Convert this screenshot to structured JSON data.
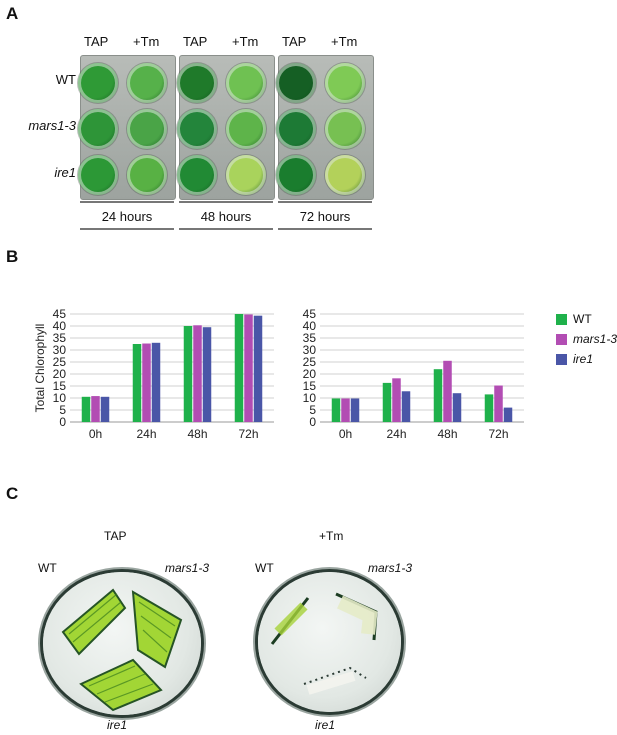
{
  "panels": {
    "a_label": "A",
    "b_label": "B",
    "c_label": "C"
  },
  "panel_a": {
    "column_headers": [
      "TAP",
      "+Tm",
      "TAP",
      "+Tm",
      "TAP",
      "+Tm"
    ],
    "row_labels": [
      "WT",
      "mars1-3",
      "ire1"
    ],
    "time_labels": [
      "24 hours",
      "48 hours",
      "72 hours"
    ],
    "well_colors": [
      [
        [
          "#2f9a36",
          "#56b14a"
        ],
        [
          "#1f7a2a",
          "#6fc152"
        ],
        [
          "#155f24",
          "#7fca55"
        ]
      ],
      [
        [
          "#2e9538",
          "#4aa447"
        ],
        [
          "#23853b",
          "#5eb44a"
        ],
        [
          "#1d7a35",
          "#77c052"
        ]
      ],
      [
        [
          "#2c9836",
          "#58b144"
        ],
        [
          "#218a34",
          "#a9d35c"
        ],
        [
          "#1a7d2e",
          "#b3d15a"
        ]
      ]
    ]
  },
  "panel_b": {
    "y_axis_label": "Total Chlorophyll",
    "legend": [
      {
        "name": "WT",
        "color": "#1fb14b",
        "italic": false
      },
      {
        "name": "mars1-3",
        "color": "#b24db3",
        "italic": true
      },
      {
        "name": "ire1",
        "color": "#4a56a7",
        "italic": true
      }
    ]
  },
  "chart_data": [
    {
      "type": "bar",
      "categories": [
        "0h",
        "24h",
        "48h",
        "72h"
      ],
      "series": [
        {
          "name": "WT",
          "values": [
            10.5,
            32.5,
            40,
            45
          ]
        },
        {
          "name": "mars1-3",
          "values": [
            10.8,
            32.7,
            40.3,
            44.8
          ]
        },
        {
          "name": "ire1",
          "values": [
            10.5,
            33,
            39.5,
            44.3
          ]
        }
      ],
      "ylabel": "Total Chlorophyll",
      "ylim": [
        0,
        45
      ],
      "yticks": [
        "0",
        "5",
        "10",
        "15",
        "20",
        "25",
        "30",
        "35",
        "40",
        "45"
      ],
      "grid": true
    },
    {
      "type": "bar",
      "categories": [
        "0h",
        "24h",
        "48h",
        "72h"
      ],
      "series": [
        {
          "name": "WT",
          "values": [
            9.8,
            16.3,
            22,
            11.5
          ]
        },
        {
          "name": "mars1-3",
          "values": [
            9.8,
            18.2,
            25.5,
            15.2
          ]
        },
        {
          "name": "ire1",
          "values": [
            9.8,
            12.8,
            12,
            6
          ]
        }
      ],
      "ylim": [
        0,
        45
      ],
      "yticks": [
        "0",
        "5",
        "10",
        "15",
        "20",
        "25",
        "30",
        "35",
        "40",
        "45"
      ],
      "grid": true
    }
  ],
  "panel_c": {
    "plates": [
      {
        "title": "TAP",
        "top_left": "WT",
        "top_right": "mars1-3",
        "bottom": "ire1"
      },
      {
        "title": "+Tm",
        "top_left": "WT",
        "top_right": "mars1-3",
        "bottom": "ire1"
      }
    ]
  }
}
